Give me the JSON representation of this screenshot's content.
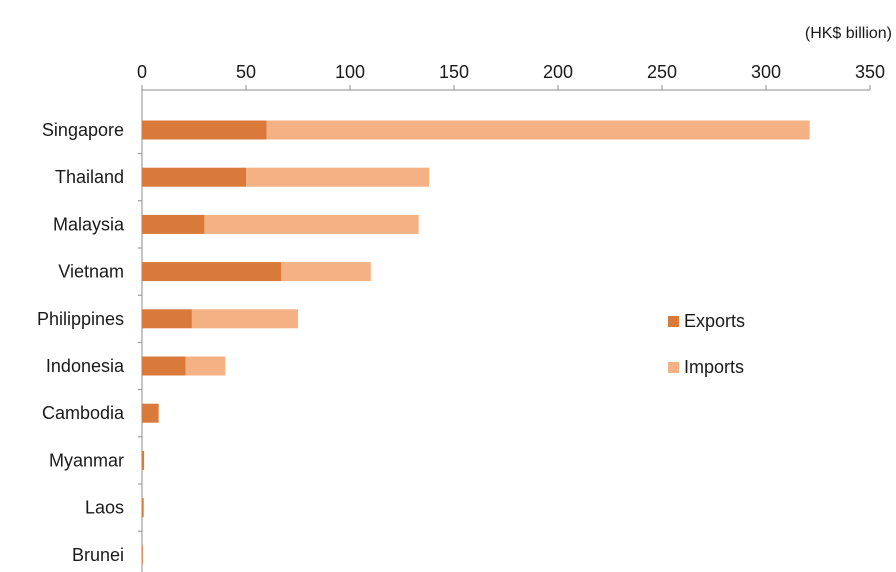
{
  "chart_data": {
    "type": "bar",
    "orientation": "horizontal",
    "stacked": true,
    "unit_label": "(HK$ billion)",
    "categories": [
      "Singapore",
      "Thailand",
      "Malaysia",
      "Vietnam",
      "Philippines",
      "Indonesia",
      "Cambodia",
      "Myanmar",
      "Laos",
      "Brunei"
    ],
    "series": [
      {
        "name": "Exports",
        "color": "#d9793a",
        "values": [
          60,
          50,
          30,
          67,
          24,
          21,
          8,
          1,
          0.8,
          0.3
        ]
      },
      {
        "name": "Imports",
        "color": "#f4b183",
        "values": [
          261,
          88,
          103,
          43,
          51,
          19,
          0,
          0,
          0,
          0
        ]
      }
    ],
    "xlim": [
      0,
      350
    ],
    "xticks": [
      0,
      50,
      100,
      150,
      200,
      250,
      300,
      350
    ],
    "axis_position": "top",
    "grid": false,
    "legend_position": "right"
  }
}
